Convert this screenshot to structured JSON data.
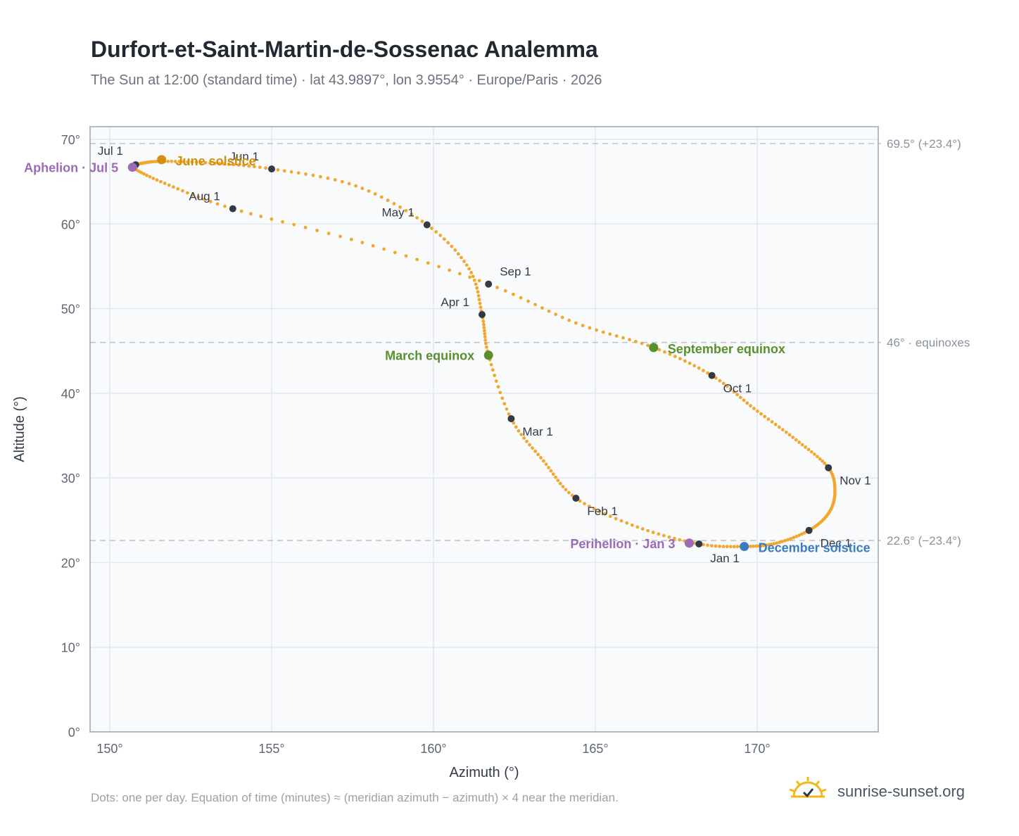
{
  "title": "Durfort-et-Saint-Martin-de-Sossenac Analemma",
  "subtitle": "The Sun at 12:00 (standard time) · lat 43.9897°, lon 3.9554° · Europe/Paris · 2026",
  "footnote": "Dots: one per day. Equation of time (minutes) ≈ (meridian azimuth − azimuth) × 4 near the meridian.",
  "brand": {
    "text": "sunrise-sunset.org",
    "icon": "sun-logo-icon"
  },
  "colors": {
    "path": "#f2a72e",
    "month": "#343a45",
    "solstice_june": "#d48f0c",
    "solstice_dec": "#3b7bbf",
    "equinox": "#5a8f2e",
    "apsis": "#9b6bb5",
    "grid": "#e3e8ee",
    "plot_bg": "#f8fafc",
    "axis": "#9aa5b5"
  },
  "chart_data": {
    "type": "scatter",
    "xlabel": "Azimuth (°)",
    "ylabel": "Altitude (°)",
    "xlim": [
      149.4,
      173.7
    ],
    "ylim": [
      0,
      71.5
    ],
    "xticks": [
      150,
      155,
      160,
      165,
      170
    ],
    "yticks": [
      0,
      10,
      20,
      30,
      40,
      50,
      60,
      70
    ],
    "x_tick_labels": [
      "150°",
      "155°",
      "160°",
      "165°",
      "170°"
    ],
    "y_tick_labels": [
      "0°",
      "10°",
      "20°",
      "30°",
      "40°",
      "50°",
      "60°",
      "70°"
    ],
    "grid": true,
    "reference_lines": [
      {
        "y": 69.5,
        "label": "69.5° (+23.4°)"
      },
      {
        "y": 46.0,
        "label": "46° · equinoxes"
      },
      {
        "y": 22.6,
        "label": "22.6° (−23.4°)"
      }
    ],
    "path_anchor_points": [
      [
        168.2,
        22.2
      ],
      [
        169.6,
        21.9
      ],
      [
        170.6,
        22.3
      ],
      [
        171.6,
        23.8
      ],
      [
        172.2,
        25.8
      ],
      [
        172.4,
        28.3
      ],
      [
        172.2,
        31.2
      ],
      [
        171.2,
        34.5
      ],
      [
        169.9,
        38.2
      ],
      [
        168.6,
        42.1
      ],
      [
        166.8,
        45.4
      ],
      [
        164.4,
        48.3
      ],
      [
        161.7,
        52.9
      ],
      [
        157.8,
        57.8
      ],
      [
        153.8,
        61.8
      ],
      [
        151.7,
        64.8
      ],
      [
        150.7,
        66.7
      ],
      [
        150.9,
        67.1
      ],
      [
        151.6,
        67.4
      ],
      [
        153.1,
        67.2
      ],
      [
        155.0,
        66.5
      ],
      [
        157.6,
        64.5
      ],
      [
        159.8,
        59.9
      ],
      [
        161.1,
        54.7
      ],
      [
        161.5,
        49.3
      ],
      [
        161.7,
        44.5
      ],
      [
        162.4,
        37.0
      ],
      [
        163.4,
        32.0
      ],
      [
        164.4,
        27.6
      ],
      [
        166.3,
        24.2
      ],
      [
        168.2,
        22.2
      ]
    ],
    "months": [
      {
        "label": "Jan 1",
        "x": 168.2,
        "y": 22.2
      },
      {
        "label": "Feb 1",
        "x": 164.4,
        "y": 27.6
      },
      {
        "label": "Mar 1",
        "x": 162.4,
        "y": 37.0
      },
      {
        "label": "Apr 1",
        "x": 161.5,
        "y": 49.3
      },
      {
        "label": "May 1",
        "x": 159.8,
        "y": 59.9
      },
      {
        "label": "Jun 1",
        "x": 155.0,
        "y": 66.5
      },
      {
        "label": "Jul 1",
        "x": 150.8,
        "y": 67.0
      },
      {
        "label": "Aug 1",
        "x": 153.8,
        "y": 61.8
      },
      {
        "label": "Sep 1",
        "x": 161.7,
        "y": 52.9
      },
      {
        "label": "Oct 1",
        "x": 168.6,
        "y": 42.1
      },
      {
        "label": "Nov 1",
        "x": 172.2,
        "y": 31.2
      },
      {
        "label": "Dec 1",
        "x": 171.6,
        "y": 23.8
      }
    ],
    "events": [
      {
        "label": "June solstice",
        "x": 151.6,
        "y": 67.6,
        "color": "#d48f0c"
      },
      {
        "label": "December solstice",
        "x": 169.6,
        "y": 21.9,
        "color": "#3b7bbf"
      },
      {
        "label": "March equinox",
        "x": 161.7,
        "y": 44.5,
        "color": "#5a8f2e"
      },
      {
        "label": "September equinox",
        "x": 166.8,
        "y": 45.4,
        "color": "#5a8f2e"
      },
      {
        "label": "Aphelion · Jul 5",
        "x": 150.7,
        "y": 66.7,
        "color": "#9b6bb5"
      },
      {
        "label": "Perihelion · Jan 3",
        "x": 167.9,
        "y": 22.3,
        "color": "#9b6bb5"
      }
    ]
  }
}
